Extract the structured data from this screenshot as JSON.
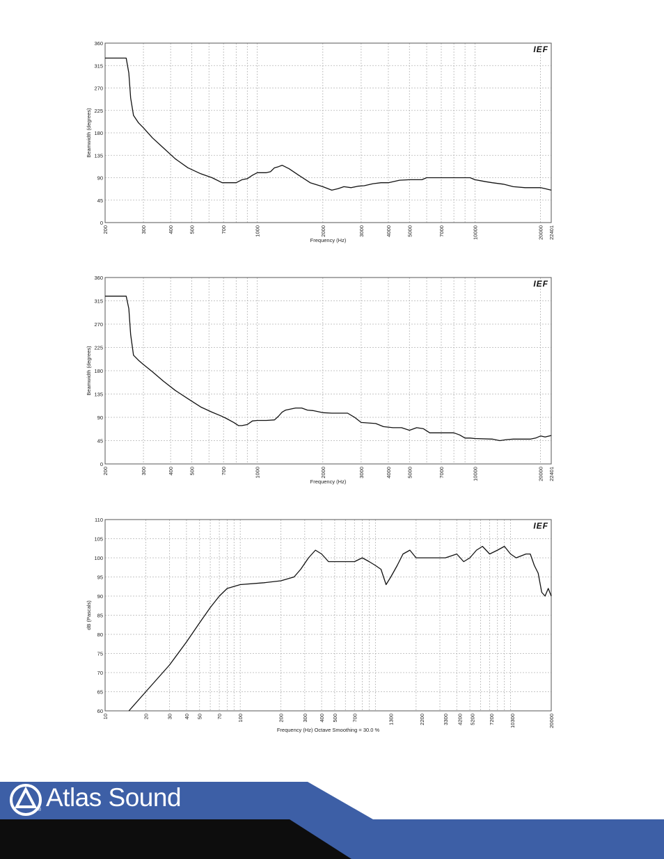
{
  "chart_data": [
    {
      "type": "line",
      "title": "",
      "xlabel": "Frequency (Hz)",
      "ylabel": "Beamwidth (degrees)",
      "xscale": "log",
      "xlim": [
        200,
        22401
      ],
      "ylim": [
        0,
        360
      ],
      "grid": true,
      "xticks": [
        "200",
        "300",
        "400",
        "500",
        "700",
        "1000",
        "2000",
        "3000",
        "4000",
        "5000",
        "7000",
        "10000",
        "20000",
        "22401"
      ],
      "yticks": [
        "0",
        "45",
        "90",
        "135",
        "180",
        "225",
        "270",
        "315",
        "360"
      ],
      "series": [
        {
          "x": [
            200,
            250,
            257,
            262,
            270,
            285,
            300,
            330,
            370,
            420,
            480,
            550,
            620,
            690,
            760,
            800,
            850,
            900,
            950,
            1000,
            1050,
            1100,
            1150,
            1200,
            1250,
            1300,
            1400,
            1550,
            1750,
            2000,
            2200,
            2350,
            2500,
            2700,
            2900,
            3100,
            3400,
            3700,
            4000,
            4500,
            5000,
            5300,
            5700,
            6000,
            7000,
            8000,
            9000,
            9500,
            10000,
            10600,
            11200,
            12000,
            13500,
            15000,
            17000,
            20000,
            21000,
            22401
          ],
          "y": [
            330,
            330,
            300,
            250,
            215,
            200,
            190,
            170,
            150,
            128,
            110,
            98,
            90,
            80,
            80,
            80,
            86,
            88,
            95,
            100,
            100,
            100,
            102,
            110,
            112,
            115,
            108,
            95,
            80,
            72,
            65,
            68,
            72,
            70,
            73,
            74,
            78,
            80,
            80,
            85,
            86,
            86,
            86,
            90,
            90,
            90,
            90,
            90,
            86,
            84,
            82,
            80,
            77,
            72,
            70,
            70,
            68,
            65
          ]
        }
      ]
    },
    {
      "type": "line",
      "title": "",
      "xlabel": "Frequency (Hz)",
      "ylabel": "Beamwidth (degrees)",
      "xscale": "log",
      "xlim": [
        200,
        22401
      ],
      "ylim": [
        0,
        360
      ],
      "grid": true,
      "xticks": [
        "200",
        "300",
        "400",
        "500",
        "700",
        "1000",
        "2000",
        "3000",
        "4000",
        "5000",
        "7000",
        "10000",
        "20000",
        "22401"
      ],
      "yticks": [
        "0",
        "45",
        "90",
        "135",
        "180",
        "225",
        "270",
        "315",
        "360"
      ],
      "series": [
        {
          "x": [
            200,
            250,
            257,
            262,
            270,
            285,
            300,
            330,
            370,
            420,
            480,
            550,
            620,
            680,
            720,
            780,
            820,
            850,
            900,
            950,
            1000,
            1100,
            1200,
            1250,
            1300,
            1350,
            1500,
            1600,
            1700,
            1800,
            2000,
            2200,
            2600,
            2800,
            3000,
            3500,
            3800,
            4200,
            4600,
            5000,
            5400,
            5800,
            6200,
            7000,
            8000,
            8500,
            9000,
            9500,
            10000,
            12000,
            13000,
            14000,
            15000,
            18000,
            19000,
            20000,
            21000,
            22401
          ],
          "y": [
            324,
            324,
            300,
            250,
            210,
            200,
            192,
            178,
            160,
            142,
            126,
            110,
            100,
            93,
            88,
            80,
            74,
            74,
            76,
            83,
            84,
            84,
            85,
            92,
            100,
            104,
            108,
            108,
            104,
            103,
            99,
            98,
            98,
            90,
            80,
            78,
            72,
            70,
            70,
            65,
            70,
            68,
            60,
            60,
            60,
            56,
            50,
            50,
            49,
            48,
            45,
            47,
            48,
            48,
            50,
            54,
            52,
            55
          ]
        }
      ]
    },
    {
      "type": "line",
      "title": "",
      "xlabel": "Frequency (Hz) Octave Smoothing = 30.0 %",
      "ylabel": "dB (Pascals)",
      "xscale": "log",
      "xlim": [
        10,
        20000
      ],
      "ylim": [
        60,
        110
      ],
      "grid": true,
      "xticks": [
        "10",
        "20",
        "30",
        "40",
        "50",
        "70",
        "100",
        "200",
        "300",
        "400",
        "500",
        "700",
        "1300",
        "2200",
        "3300",
        "4200",
        "5200",
        "7200",
        "10300",
        "20000"
      ],
      "yticks": [
        "60",
        "65",
        "70",
        "75",
        "80",
        "85",
        "90",
        "95",
        "100",
        "105",
        "110"
      ],
      "series": [
        {
          "x": [
            15,
            20,
            30,
            40,
            50,
            60,
            70,
            80,
            100,
            150,
            200,
            250,
            280,
            320,
            360,
            400,
            450,
            500,
            600,
            700,
            800,
            900,
            1000,
            1100,
            1200,
            1300,
            1450,
            1600,
            1800,
            2000,
            2400,
            2800,
            3300,
            4000,
            4500,
            5000,
            5600,
            6200,
            7000,
            8000,
            9000,
            10000,
            11000,
            13000,
            14000,
            15000,
            16000,
            17000,
            18000,
            19000,
            20000
          ],
          "y": [
            60,
            65,
            72,
            78,
            83,
            87,
            90,
            92,
            93,
            93.5,
            94,
            95,
            97,
            100,
            102,
            101,
            99,
            99,
            99,
            99,
            100,
            99,
            98,
            97,
            93,
            95,
            98,
            101,
            102,
            100,
            100,
            100,
            100,
            101,
            99,
            100,
            102,
            103,
            101,
            102,
            103,
            101,
            100,
            101,
            101,
            98,
            96,
            91,
            90,
            92,
            90
          ]
        }
      ]
    }
  ],
  "logo_text": "IEF",
  "brand": {
    "name": "Atlas Sound",
    "reg": "®",
    "colors": {
      "blue": "#3d5fa6",
      "black": "#0d0d0d"
    }
  }
}
